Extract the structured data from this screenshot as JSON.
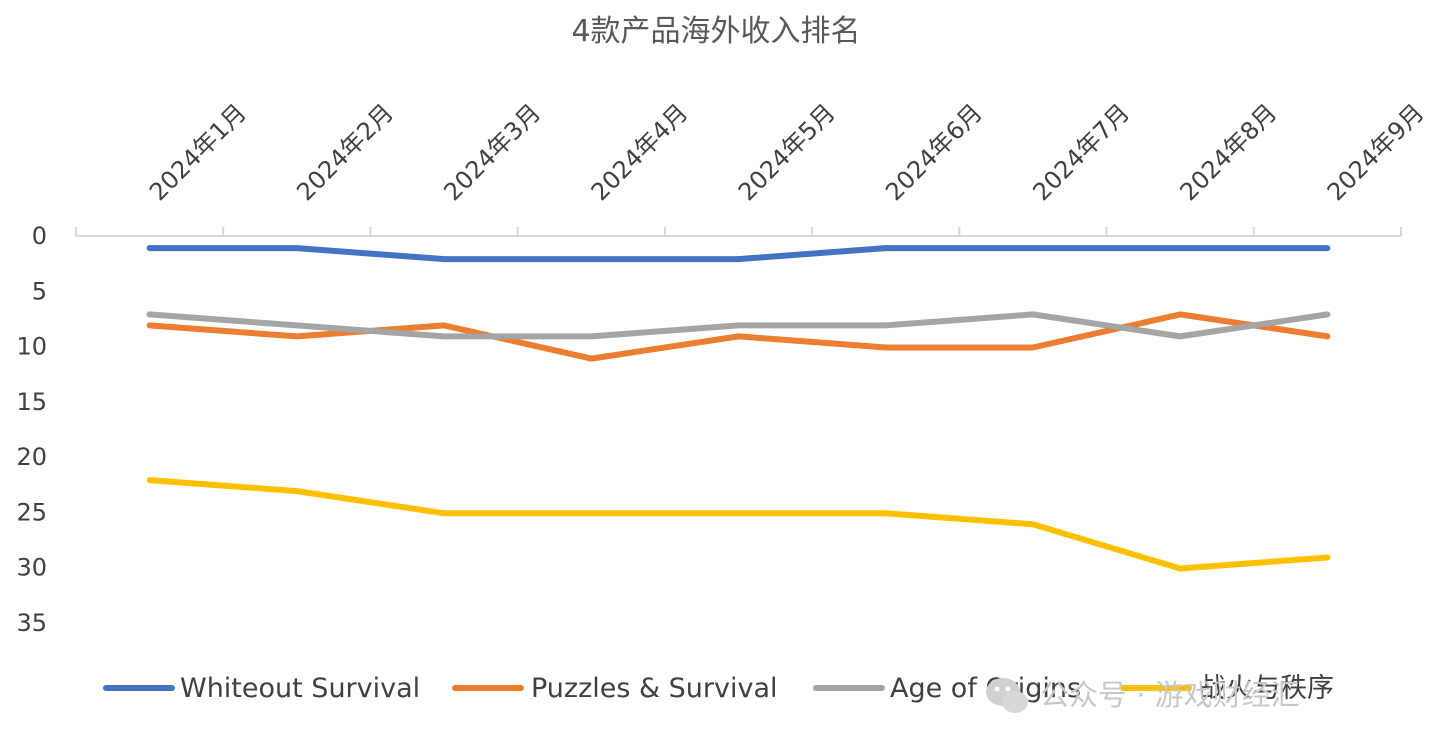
{
  "chart_data": {
    "type": "line",
    "title": "4款产品海外收入排名",
    "categories": [
      "2024年1月",
      "2024年2月",
      "2024年3月",
      "2024年4月",
      "2024年5月",
      "2024年6月",
      "2024年7月",
      "2024年8月",
      "2024年9月"
    ],
    "y_axis": {
      "reversed": true,
      "ylim": [
        0,
        35
      ],
      "ticks": [
        0,
        5,
        10,
        15,
        20,
        25,
        30,
        35
      ]
    },
    "x_axis": {
      "position": "top"
    },
    "series": [
      {
        "name": "Whiteout Survival",
        "color": "#4472C4",
        "values": [
          1,
          1,
          2,
          2,
          2,
          1,
          1,
          1,
          1
        ]
      },
      {
        "name": "Puzzles & Survival",
        "color": "#ED7D31",
        "values": [
          8,
          9,
          8,
          11,
          9,
          10,
          10,
          7,
          9
        ]
      },
      {
        "name": "Age of Origins",
        "color": "#A5A5A5",
        "values": [
          7,
          8,
          9,
          9,
          8,
          8,
          7,
          9,
          7
        ]
      },
      {
        "name": "战火与秩序",
        "color": "#FFC000",
        "values": [
          22,
          23,
          25,
          25,
          25,
          25,
          26,
          30,
          29
        ]
      }
    ],
    "grid": false,
    "legend": "bottom"
  },
  "watermark": {
    "text": "公众号 · 游戏财经汇",
    "icon": "wechat-icon"
  }
}
